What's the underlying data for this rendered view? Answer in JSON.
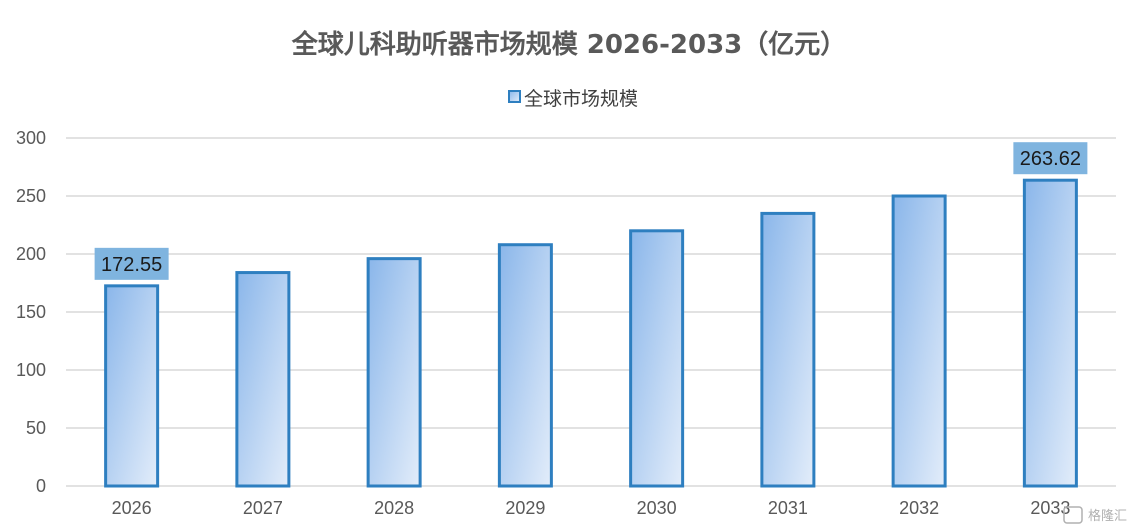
{
  "chart_data": {
    "type": "bar",
    "title": "全球儿科助听器市场规模 2026-2033（亿元）",
    "legend": {
      "label": "全球市场规模",
      "placement": "top-center"
    },
    "categories": [
      "2026",
      "2027",
      "2028",
      "2029",
      "2030",
      "2031",
      "2032",
      "2033"
    ],
    "series": [
      {
        "name": "全球市场规模",
        "values": [
          172.55,
          184,
          196,
          208,
          220,
          235,
          250,
          263.62
        ]
      }
    ],
    "data_labels": [
      {
        "category": "2026",
        "text": "172.55"
      },
      {
        "category": "2033",
        "text": "263.62"
      }
    ],
    "xlabel": "",
    "ylabel": "",
    "ylim": [
      0,
      300
    ],
    "yticks": [
      "0",
      "50",
      "100",
      "150",
      "200",
      "250",
      "300"
    ],
    "grid": true,
    "colors": {
      "bar_fill_start": "#8ab6ea",
      "bar_fill_end": "#e3edfa",
      "bar_border": "#2e7fc0",
      "label_bg": "#7fb4df",
      "gridline": "#d9d9d9"
    }
  },
  "watermark": {
    "text": "格隆汇"
  }
}
